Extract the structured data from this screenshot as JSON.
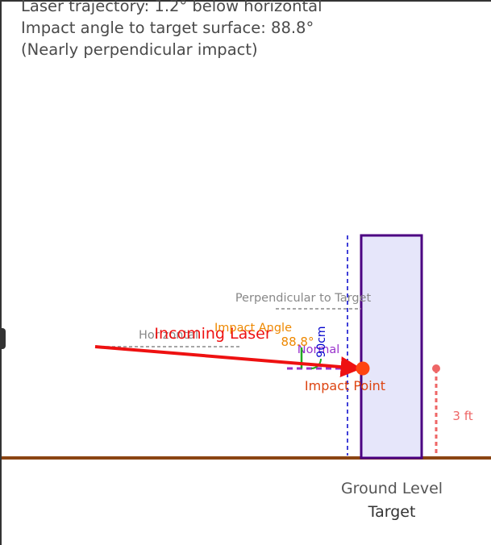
{
  "info": {
    "line1": "Laser trajectory: 1.2° below horizontal",
    "line2": "Impact angle to target surface: 88.8°",
    "line3": "(Nearly perpendicular impact)"
  },
  "labels": {
    "perpendicular": "Perpendicular to Target",
    "horizontal": "Horizontal",
    "incoming_laser": "Incoming Laser",
    "impact_angle": "Impact Angle",
    "impact_angle_value": "88.8°",
    "normal": "Normal",
    "scale": "90cm",
    "impact_point": "Impact Point",
    "height": "3 ft",
    "ground": "Ground Level",
    "target": "Target"
  },
  "values": {
    "laser_angle_deg": 1.2,
    "impact_angle_deg": 88.8
  },
  "colors": {
    "laser": "#ee1111",
    "impact_point": "#ff4411",
    "impact_text": "#dd4411",
    "target_stroke": "#4b0082",
    "target_fill": "#e6e6fa",
    "ground": "#8b4513",
    "normal": "#9932cc",
    "guide": "#0000cc",
    "angle_text": "#ee8800",
    "height_marker": "#ee6666",
    "angle_marker": "#22aa22",
    "muted": "#888888",
    "text": "#555555"
  }
}
